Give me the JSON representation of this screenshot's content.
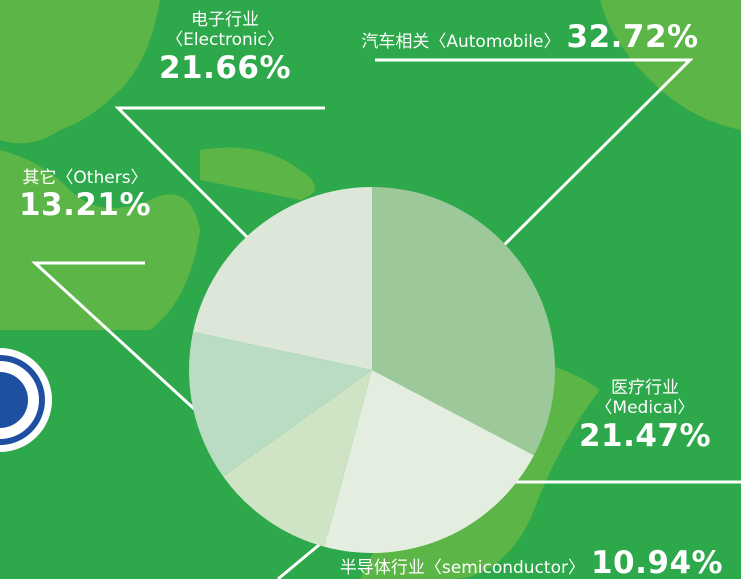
{
  "chart_data": {
    "type": "pie",
    "categories": [
      "汽车相关〈Automobile〉",
      "医疗行业〈Medical〉",
      "半导体行业〈semiconductor〉",
      "其它〈Others〉",
      "电子行业〈Electronic〉"
    ],
    "values": [
      32.72,
      21.47,
      10.94,
      13.21,
      21.66
    ],
    "value_labels": [
      "32.72%",
      "21.47%",
      "10.94%",
      "13.21%",
      "21.66%"
    ],
    "colors": [
      "#9dc89a",
      "#e3eee1",
      "#cfe4c4",
      "#b9dcc2",
      "#dce7d9"
    ]
  }
}
